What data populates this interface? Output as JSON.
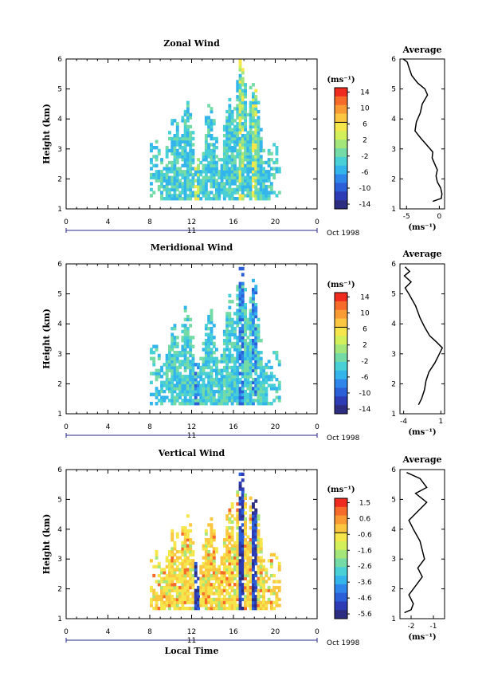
{
  "chart_data": [
    {
      "type": "heatmap",
      "title": "Zonal Wind",
      "ylabel": "Height (km)",
      "xlabel": "",
      "xlim": [
        0,
        24
      ],
      "ylim": [
        1,
        6
      ],
      "xticks": [
        "0",
        "4",
        "8",
        "12",
        "16",
        "20",
        "0"
      ],
      "yticks": [
        "1",
        "2",
        "3",
        "4",
        "5",
        "6"
      ],
      "date_axis": {
        "day": "11",
        "month": "Oct 1998"
      },
      "colorbar": {
        "unit": "(ms⁻¹)",
        "tick_labels": [
          "14",
          "10",
          "6",
          "2",
          "-2",
          "-6",
          "-10",
          "-14"
        ],
        "colors": [
          "#ef2a1e",
          "#f66a2a",
          "#f99a33",
          "#fbc640",
          "#f4e64b",
          "#d3ef5a",
          "#a4e67a",
          "#74dba7",
          "#49cfd6",
          "#33b5ec",
          "#2f86ea",
          "#2b5fd8",
          "#2d3bb5",
          "#2c2d80"
        ]
      },
      "average": {
        "title": "Average",
        "xlabel": "(ms⁻¹)",
        "xticks": [
          "-5",
          "0"
        ],
        "xlim": [
          -6,
          0.8
        ],
        "profile": [
          [
            -1.0,
            1.25
          ],
          [
            0.3,
            1.35
          ],
          [
            0.4,
            1.5
          ],
          [
            0.2,
            1.7
          ],
          [
            -0.3,
            1.9
          ],
          [
            -0.5,
            2.1
          ],
          [
            -0.3,
            2.3
          ],
          [
            -0.7,
            2.5
          ],
          [
            -1.1,
            2.7
          ],
          [
            -1.0,
            2.9
          ],
          [
            -1.8,
            3.1
          ],
          [
            -2.8,
            3.35
          ],
          [
            -3.7,
            3.6
          ],
          [
            -3.5,
            3.9
          ],
          [
            -2.9,
            4.2
          ],
          [
            -2.6,
            4.5
          ],
          [
            -1.8,
            4.8
          ],
          [
            -2.2,
            5.0
          ],
          [
            -3.3,
            5.2
          ],
          [
            -4.2,
            5.45
          ],
          [
            -4.6,
            5.7
          ],
          [
            -4.9,
            5.9
          ],
          [
            -5.5,
            6.0
          ]
        ]
      }
    },
    {
      "type": "heatmap",
      "title": "Meridional Wind",
      "ylabel": "Height (km)",
      "xlabel": "",
      "xlim": [
        0,
        24
      ],
      "ylim": [
        1,
        6
      ],
      "xticks": [
        "0",
        "4",
        "8",
        "12",
        "16",
        "20",
        "0"
      ],
      "yticks": [
        "1",
        "2",
        "3",
        "4",
        "5",
        "6"
      ],
      "date_axis": {
        "day": "11",
        "month": "Oct 1998"
      },
      "colorbar": {
        "unit": "(ms⁻¹)",
        "tick_labels": [
          "14",
          "10",
          "6",
          "2",
          "-2",
          "-6",
          "-10",
          "-14"
        ],
        "colors": [
          "#ef2a1e",
          "#f66a2a",
          "#f99a33",
          "#fbc640",
          "#f4e64b",
          "#d3ef5a",
          "#a4e67a",
          "#74dba7",
          "#49cfd6",
          "#33b5ec",
          "#2f86ea",
          "#2b5fd8",
          "#2d3bb5",
          "#2c2d80"
        ]
      },
      "average": {
        "title": "Average",
        "xlabel": "(ms⁻¹)",
        "xticks": [
          "-4",
          "1"
        ],
        "xlim": [
          -4.5,
          1.5
        ],
        "profile": [
          [
            -2.0,
            1.3
          ],
          [
            -1.6,
            1.5
          ],
          [
            -1.2,
            1.8
          ],
          [
            -1.0,
            2.1
          ],
          [
            -0.6,
            2.4
          ],
          [
            0.2,
            2.7
          ],
          [
            0.8,
            3.0
          ],
          [
            1.2,
            3.2
          ],
          [
            0.4,
            3.4
          ],
          [
            -0.5,
            3.6
          ],
          [
            -1.2,
            3.9
          ],
          [
            -1.8,
            4.2
          ],
          [
            -2.4,
            4.6
          ],
          [
            -3.3,
            5.0
          ],
          [
            -3.8,
            5.2
          ],
          [
            -3.0,
            5.4
          ],
          [
            -3.9,
            5.6
          ],
          [
            -3.2,
            5.75
          ],
          [
            -3.8,
            5.9
          ]
        ]
      }
    },
    {
      "type": "heatmap",
      "title": "Vertical Wind",
      "ylabel": "Height (km)",
      "xlabel": "Local Time",
      "xlim": [
        0,
        24
      ],
      "ylim": [
        1,
        6
      ],
      "xticks": [
        "0",
        "4",
        "8",
        "12",
        "16",
        "20",
        "0"
      ],
      "yticks": [
        "1",
        "2",
        "3",
        "4",
        "5",
        "6"
      ],
      "date_axis": {
        "day": "11",
        "month": "Oct 1998"
      },
      "colorbar": {
        "unit": "(ms⁻¹)",
        "tick_labels": [
          "1.5",
          "0.6",
          "-0.6",
          "-1.6",
          "-2.6",
          "-3.6",
          "-4.6",
          "-5.6"
        ],
        "colors": [
          "#ef2a1e",
          "#f66a2a",
          "#f99a33",
          "#fbc640",
          "#f4e64b",
          "#d3ef5a",
          "#a4e67a",
          "#74dba7",
          "#49cfd6",
          "#33b5ec",
          "#2f86ea",
          "#2b5fd8",
          "#2d3bb5",
          "#2c2d80"
        ]
      },
      "average": {
        "title": "Average",
        "xlabel": "(ms⁻¹)",
        "xticks": [
          "-2",
          "-1"
        ],
        "xlim": [
          -2.5,
          -0.5
        ],
        "profile": [
          [
            -2.3,
            1.2
          ],
          [
            -2.0,
            1.3
          ],
          [
            -1.9,
            1.5
          ],
          [
            -2.1,
            1.8
          ],
          [
            -1.8,
            2.1
          ],
          [
            -1.5,
            2.4
          ],
          [
            -1.7,
            2.7
          ],
          [
            -1.4,
            3.0
          ],
          [
            -1.5,
            3.3
          ],
          [
            -1.6,
            3.6
          ],
          [
            -1.9,
            4.0
          ],
          [
            -2.1,
            4.3
          ],
          [
            -1.7,
            4.6
          ],
          [
            -1.3,
            4.9
          ],
          [
            -1.8,
            5.2
          ],
          [
            -1.3,
            5.4
          ],
          [
            -1.6,
            5.7
          ],
          [
            -2.2,
            5.9
          ]
        ]
      }
    }
  ]
}
